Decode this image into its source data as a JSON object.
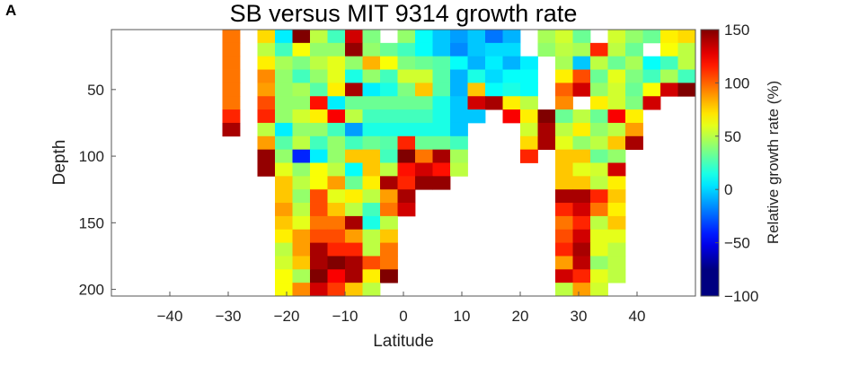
{
  "panel_label": "A",
  "chart_data": {
    "type": "heatmap",
    "title": "SB versus MIT 9314 growth rate",
    "xlabel": "Latitude",
    "ylabel": "Depth",
    "xlim": [
      -50,
      50
    ],
    "ylim": [
      205,
      5
    ],
    "x_ticks": [
      -40,
      -30,
      -20,
      -10,
      0,
      10,
      20,
      30,
      40
    ],
    "y_ticks": [
      50,
      100,
      150,
      200
    ],
    "cell_width_deg": 3,
    "cell_height_depth": 10,
    "x_cells_start": [
      -31,
      -28,
      -25,
      -22,
      -19,
      -16,
      -13,
      -10,
      -7,
      -4,
      -1,
      2,
      5,
      8,
      11,
      14,
      17,
      20,
      23,
      26,
      29,
      32,
      35,
      38,
      41,
      44,
      47
    ],
    "depth_rows": [
      10,
      20,
      30,
      40,
      50,
      60,
      70,
      80,
      90,
      100,
      110,
      120,
      130,
      140,
      150,
      160,
      170,
      180,
      190,
      200
    ],
    "grid": [
      [
        90,
        null,
        65,
        -10,
        150,
        40,
        10,
        130,
        25,
        null,
        30,
        -5,
        -20,
        -30,
        -20,
        -40,
        -25,
        null,
        35,
        45,
        20,
        null,
        45,
        30,
        20,
        60,
        65
      ],
      [
        90,
        null,
        40,
        10,
        55,
        30,
        30,
        145,
        30,
        20,
        10,
        -5,
        -20,
        -35,
        -20,
        -15,
        -15,
        null,
        30,
        40,
        35,
        110,
        40,
        20,
        null,
        55,
        40
      ],
      [
        90,
        null,
        60,
        35,
        25,
        40,
        50,
        30,
        75,
        55,
        25,
        20,
        15,
        -5,
        -25,
        -10,
        -25,
        -10,
        null,
        35,
        -20,
        40,
        20,
        35,
        -5,
        10,
        40
      ],
      [
        90,
        null,
        85,
        30,
        10,
        30,
        50,
        0,
        30,
        10,
        45,
        45,
        15,
        -25,
        0,
        -15,
        -5,
        -5,
        null,
        60,
        100,
        20,
        50,
        25,
        10,
        35,
        10
      ],
      [
        90,
        null,
        80,
        30,
        35,
        15,
        60,
        140,
        -10,
        0,
        25,
        70,
        15,
        -25,
        70,
        -5,
        0,
        -5,
        null,
        95,
        130,
        30,
        45,
        20,
        55,
        130,
        150
      ],
      [
        90,
        null,
        100,
        30,
        30,
        115,
        -10,
        20,
        20,
        20,
        20,
        20,
        0,
        -20,
        130,
        140,
        60,
        40,
        null,
        85,
        null,
        60,
        45,
        25,
        130,
        null,
        null
      ],
      [
        110,
        null,
        110,
        30,
        45,
        60,
        120,
        40,
        10,
        10,
        10,
        10,
        0,
        -20,
        -20,
        null,
        120,
        60,
        150,
        20,
        40,
        20,
        120,
        60,
        null,
        null,
        null
      ],
      [
        140,
        null,
        40,
        -10,
        30,
        30,
        10,
        -30,
        0,
        0,
        0,
        0,
        0,
        -20,
        null,
        null,
        null,
        45,
        140,
        40,
        60,
        30,
        40,
        80,
        null,
        null,
        null
      ],
      [
        null,
        null,
        80,
        15,
        40,
        10,
        30,
        10,
        20,
        15,
        110,
        20,
        20,
        10,
        null,
        null,
        null,
        65,
        140,
        50,
        30,
        40,
        70,
        140,
        null,
        null,
        null
      ],
      [
        null,
        null,
        145,
        30,
        -60,
        -10,
        30,
        70,
        70,
        10,
        150,
        90,
        140,
        35,
        null,
        null,
        null,
        110,
        null,
        70,
        70,
        20,
        30,
        null,
        null,
        null,
        null
      ],
      [
        null,
        null,
        145,
        50,
        30,
        55,
        40,
        -5,
        70,
        40,
        115,
        130,
        115,
        40,
        null,
        null,
        null,
        null,
        null,
        70,
        50,
        45,
        130,
        null,
        null,
        null,
        null
      ],
      [
        null,
        null,
        null,
        70,
        40,
        55,
        80,
        20,
        60,
        140,
        110,
        145,
        145,
        null,
        null,
        null,
        null,
        null,
        null,
        70,
        70,
        40,
        60,
        null,
        null,
        null,
        null
      ],
      [
        null,
        null,
        null,
        70,
        30,
        100,
        50,
        60,
        40,
        80,
        140,
        null,
        null,
        null,
        null,
        null,
        null,
        null,
        null,
        140,
        140,
        110,
        70,
        null,
        null,
        null,
        null
      ],
      [
        null,
        null,
        null,
        80,
        40,
        100,
        70,
        40,
        10,
        90,
        130,
        null,
        null,
        null,
        null,
        null,
        null,
        null,
        null,
        110,
        130,
        90,
        60,
        null,
        null,
        null,
        null
      ],
      [
        null,
        null,
        null,
        70,
        50,
        90,
        90,
        140,
        0,
        40,
        null,
        null,
        null,
        null,
        null,
        null,
        null,
        null,
        null,
        90,
        110,
        40,
        70,
        null,
        null,
        null,
        null
      ],
      [
        null,
        null,
        null,
        60,
        80,
        100,
        100,
        80,
        40,
        70,
        null,
        null,
        null,
        null,
        null,
        null,
        null,
        null,
        null,
        100,
        130,
        50,
        50,
        null,
        null,
        null,
        null
      ],
      [
        null,
        null,
        null,
        40,
        80,
        140,
        110,
        110,
        40,
        90,
        null,
        null,
        null,
        null,
        null,
        null,
        null,
        null,
        null,
        110,
        140,
        50,
        40,
        null,
        null,
        null,
        null
      ],
      [
        null,
        null,
        null,
        45,
        70,
        140,
        150,
        140,
        100,
        90,
        null,
        null,
        null,
        null,
        null,
        null,
        null,
        null,
        null,
        80,
        135,
        30,
        40,
        null,
        null,
        null,
        null
      ],
      [
        null,
        null,
        null,
        55,
        35,
        150,
        120,
        140,
        60,
        150,
        null,
        null,
        null,
        null,
        null,
        null,
        null,
        null,
        null,
        130,
        110,
        50,
        40,
        null,
        null,
        null,
        null
      ],
      [
        null,
        null,
        null,
        55,
        85,
        130,
        105,
        70,
        40,
        null,
        null,
        null,
        null,
        null,
        null,
        null,
        null,
        null,
        null,
        40,
        80,
        45,
        null,
        null,
        null,
        null,
        null
      ]
    ],
    "colorbar": {
      "label": "Relative growth rate (%)",
      "range": [
        -100,
        150
      ],
      "ticks": [
        150,
        100,
        50,
        0,
        -50,
        -100
      ],
      "colormap": "jet",
      "lowest_color": "#ffffff"
    },
    "grid_lines": false
  }
}
